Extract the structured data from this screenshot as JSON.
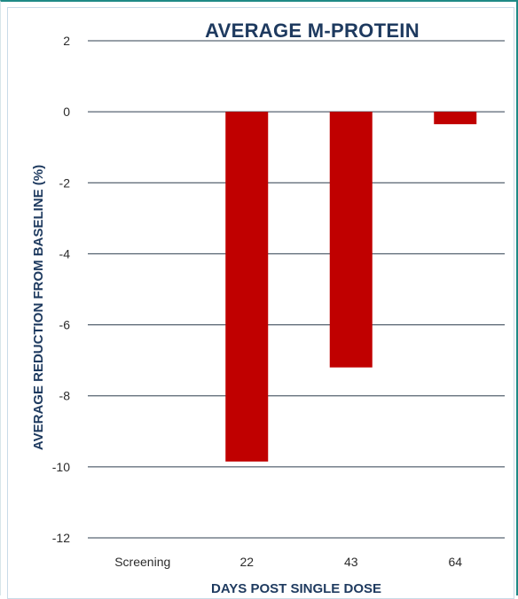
{
  "chart_data": {
    "type": "bar",
    "title": "AVERAGE M-PROTEIN",
    "xlabel": "DAYS POST SINGLE DOSE",
    "ylabel": "AVERAGE REDUCTION FROM BASELINE (%)",
    "categories": [
      "Screening",
      "22",
      "43",
      "64"
    ],
    "values": [
      0,
      -9.85,
      -7.2,
      -0.35
    ],
    "ylim": [
      -12,
      2
    ],
    "yticks": [
      2,
      0,
      -2,
      -4,
      -6,
      -8,
      -10,
      -12
    ],
    "grid": true,
    "legend": "none",
    "bar_color": "#c00000",
    "grid_color": "#2f3f4f",
    "title_color": "#1e3a5f"
  }
}
